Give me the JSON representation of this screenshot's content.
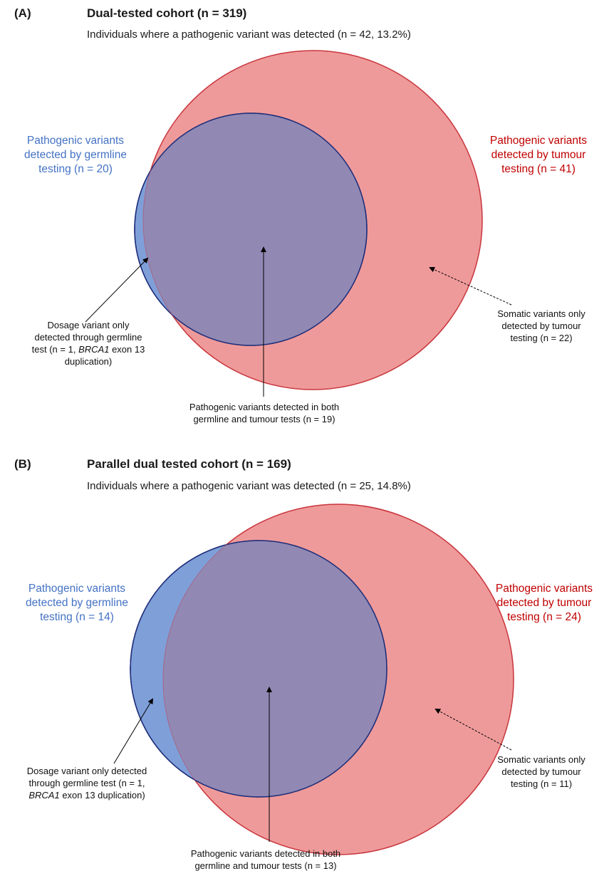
{
  "panel_a": {
    "label": "(A)",
    "title": "Dual-tested cohort (n = 319)",
    "subtitle": "Individuals where a pathogenic variant was detected (n = 42, 13.2%)",
    "germline_label": [
      "Pathogenic variants",
      "detected by germline",
      "testing (n = 20)"
    ],
    "tumour_label": [
      "Pathogenic variants",
      "detected by tumour",
      "testing (n = 41)"
    ],
    "dosage_note": [
      "Dosage variant only",
      "detected through germline",
      "test (n = 1,",
      "BRCA1",
      "exon 13",
      "duplication)"
    ],
    "somatic_note": [
      "Somatic variants only",
      "detected by tumour",
      "testing (n = 22)"
    ],
    "both_note": [
      "Pathogenic variants detected in both",
      "germline and tumour tests (n = 19)"
    ]
  },
  "panel_b": {
    "label": "(B)",
    "title": "Parallel dual tested cohort (n = 169)",
    "subtitle": "Individuals where a pathogenic variant was detected (n = 25, 14.8%)",
    "germline_label": [
      "Pathogenic variants",
      "detected by germline",
      "testing (n = 14)"
    ],
    "tumour_label": [
      "Pathogenic variants",
      "detected by tumour",
      "testing (n = 24)"
    ],
    "dosage_note": [
      "Dosage variant only detected",
      "through germline test (n = 1,",
      "BRCA1",
      "exon 13 duplication)"
    ],
    "somatic_note": [
      "Somatic variants only",
      "detected by tumour",
      "testing (n = 11)"
    ],
    "both_note": [
      "Pathogenic variants detected in both",
      "germline and tumour tests (n = 13)"
    ]
  },
  "colors": {
    "germline_fill": "#7f9fd9",
    "germline_stroke": "#1f2f7a",
    "tumour_fill": "#ee9292",
    "tumour_stroke": "#d32a2a",
    "overlap_fill": "#9189b4",
    "germline_text": "#4472c4",
    "tumour_text": "#c00000"
  }
}
